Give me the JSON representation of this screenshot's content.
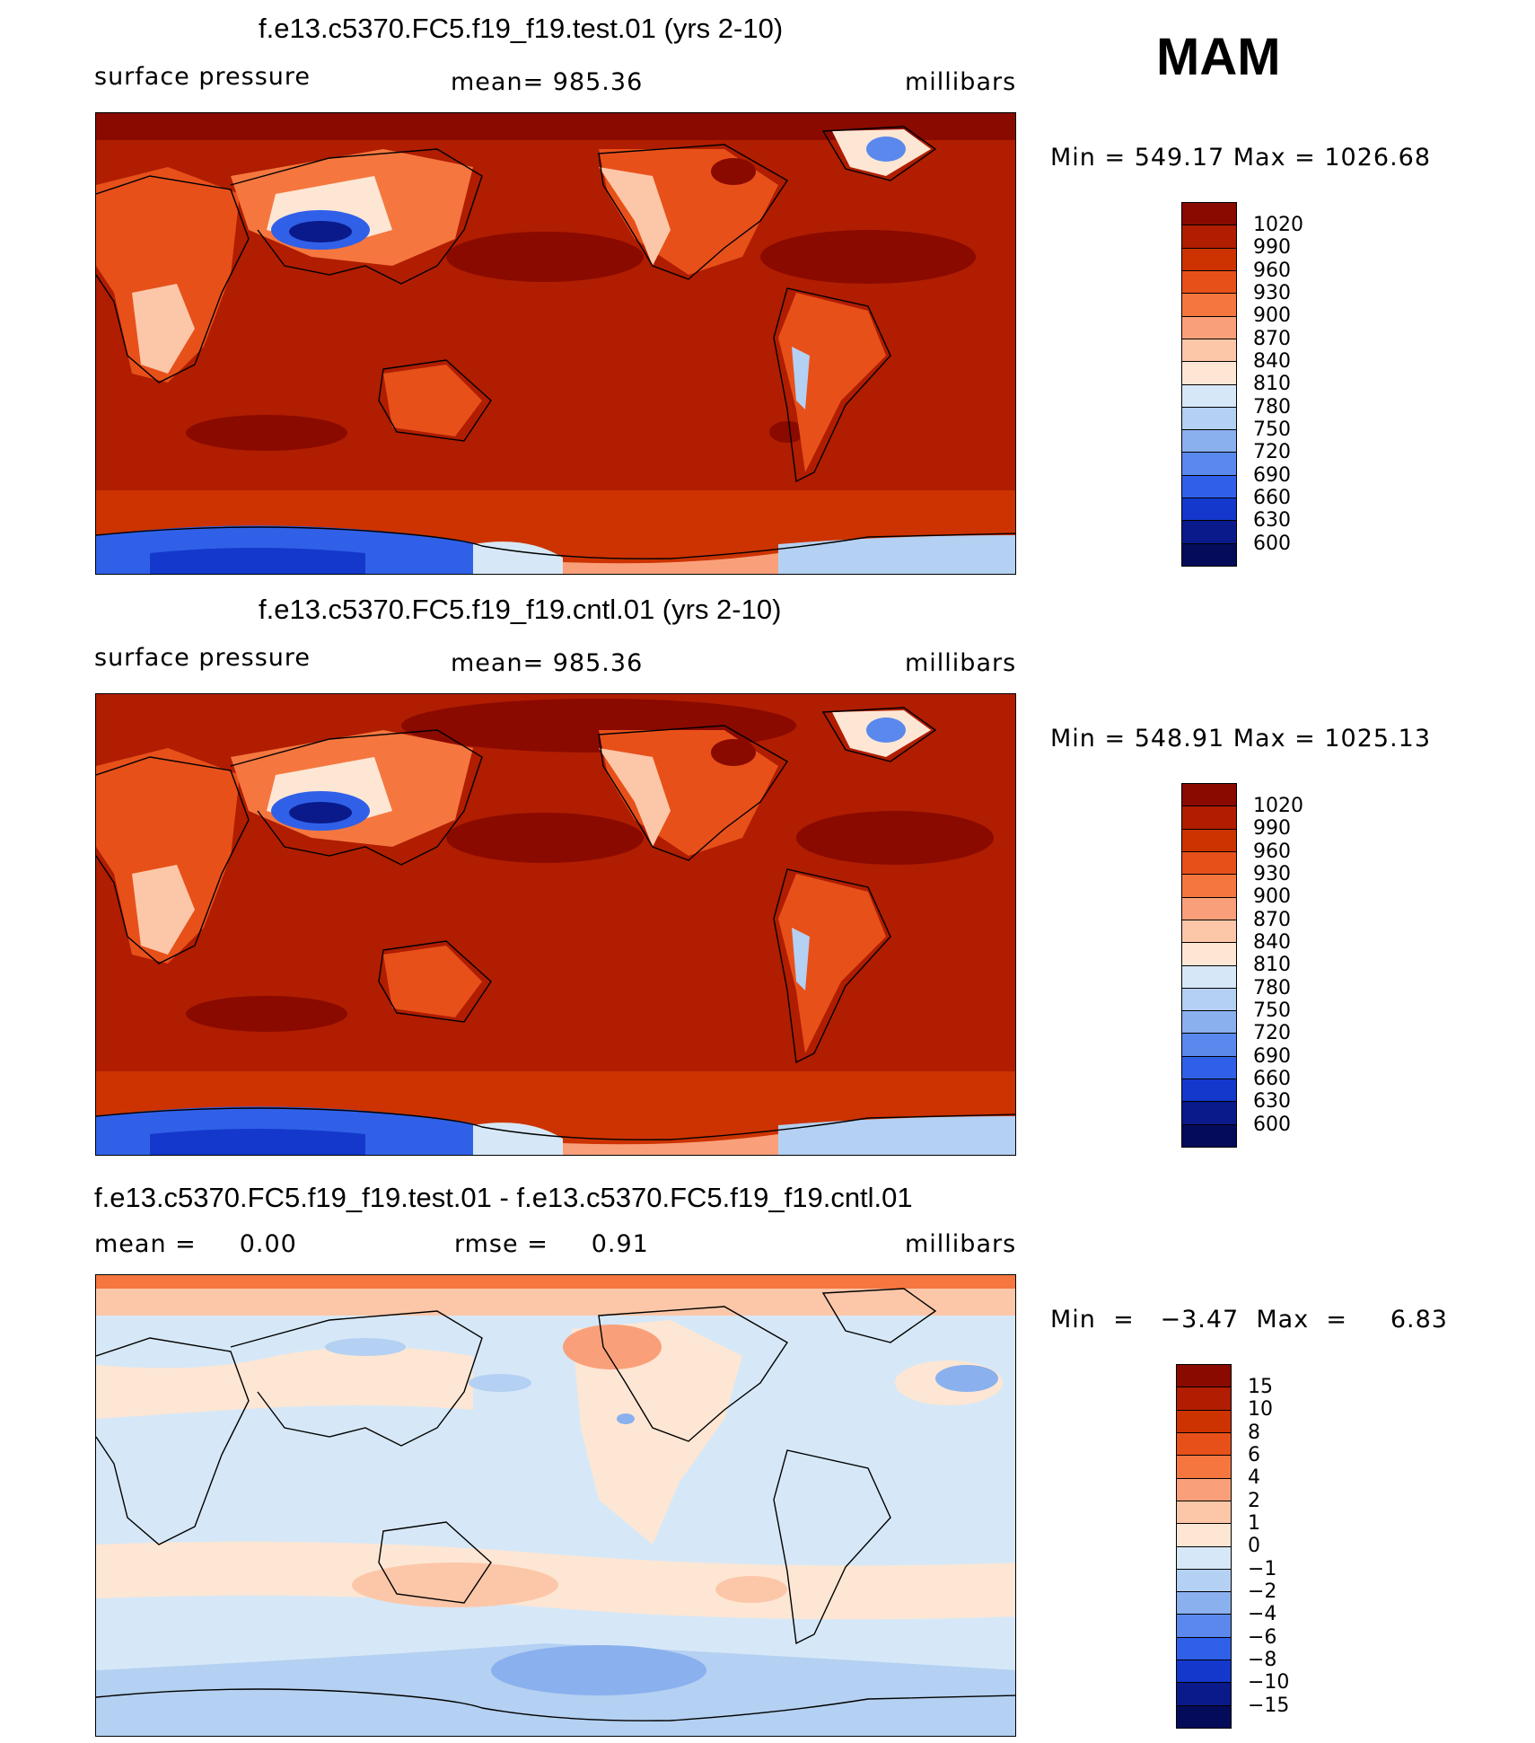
{
  "season": "MAM",
  "panels": [
    {
      "title": "f.e13.c5370.FC5.f19_f19.test.01 (yrs 2-10)",
      "left_label": "surface pressure",
      "center_label": "mean=  985.36",
      "right_label": "millibars",
      "minmax": "Min  =  549.17  Max  =  1026.68"
    },
    {
      "title": "f.e13.c5370.FC5.f19_f19.cntl.01 (yrs 2-10)",
      "left_label": "surface pressure",
      "center_label": "mean=  985.36",
      "right_label": "millibars",
      "minmax": "Min  =  548.91  Max  =  1025.13"
    },
    {
      "title": "f.e13.c5370.FC5.f19_f19.test.01 - f.e13.c5370.FC5.f19_f19.cntl.01",
      "left_label": "mean =     0.00",
      "center_label": "rmse =     0.91",
      "right_label": "millibars",
      "minmax": "Min  =   −3.47  Max  =     6.83"
    }
  ],
  "colorbars": {
    "absolute": {
      "labels": [
        "1020",
        "990",
        "960",
        "930",
        "900",
        "870",
        "840",
        "810",
        "780",
        "750",
        "720",
        "690",
        "660",
        "630",
        "600"
      ],
      "colors": [
        "#8a0a00",
        "#b01d00",
        "#cc3300",
        "#e8501a",
        "#f5773f",
        "#f9a07a",
        "#fcc7a8",
        "#fde6d4",
        "#d6e8f7",
        "#b4d0f2",
        "#8ab0ee",
        "#5a88ec",
        "#3060e8",
        "#1438cc",
        "#0a1a8a",
        "#040c5a"
      ]
    },
    "difference": {
      "labels": [
        "15",
        "10",
        "8",
        "6",
        "4",
        "2",
        "1",
        "0",
        "−1",
        "−2",
        "−4",
        "−6",
        "−8",
        "−10",
        "−15"
      ],
      "colors": [
        "#8a0a00",
        "#b01d00",
        "#cc3300",
        "#e8501a",
        "#f5773f",
        "#f9a07a",
        "#fcc7a8",
        "#fde6d4",
        "#d6e8f7",
        "#b4d0f2",
        "#8ab0ee",
        "#5a88ec",
        "#3060e8",
        "#1438cc",
        "#0a1a8a",
        "#040c5a"
      ]
    }
  }
}
